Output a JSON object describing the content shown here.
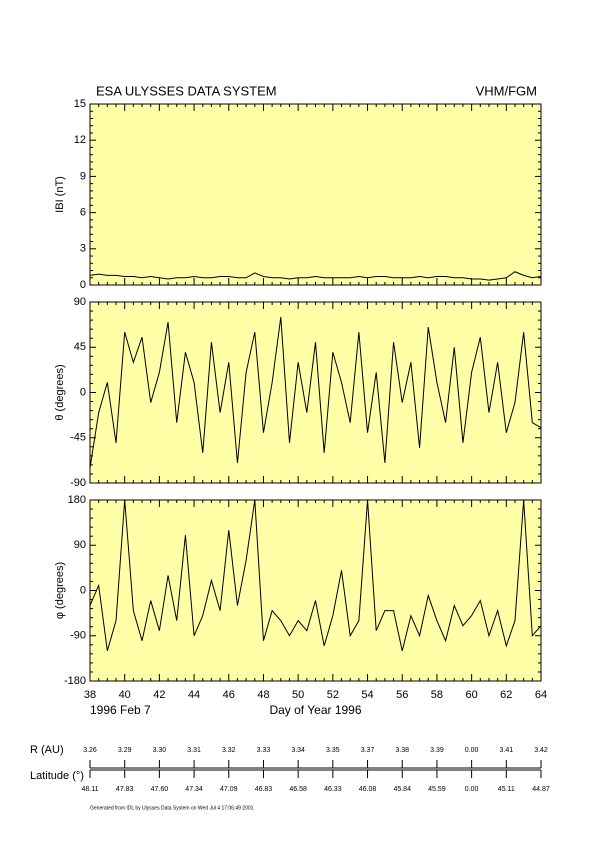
{
  "header": {
    "title": "ESA ULYSSES DATA SYSTEM",
    "instrument": "VHM/FGM"
  },
  "chart_data": [
    {
      "type": "line",
      "ylabel": "IBI (nT)",
      "color": "#000000",
      "xlim": [
        38,
        64
      ],
      "xticks": [
        38,
        40,
        42,
        44,
        46,
        48,
        50,
        52,
        54,
        56,
        58,
        60,
        62,
        64
      ],
      "ylim": [
        0,
        15
      ],
      "yticks": [
        0,
        3,
        6,
        9,
        12,
        15
      ],
      "x": [
        38,
        38.5,
        39,
        39.5,
        40,
        40.5,
        41,
        41.5,
        42,
        42.5,
        43,
        43.5,
        44,
        44.5,
        45,
        45.5,
        46,
        46.5,
        47,
        47.5,
        48,
        48.5,
        49,
        49.5,
        50,
        50.5,
        51,
        51.5,
        52,
        52.5,
        53,
        53.5,
        54,
        54.5,
        55,
        55.5,
        56,
        56.5,
        57,
        57.5,
        58,
        58.5,
        59,
        59.5,
        60,
        60.5,
        61,
        61.5,
        62,
        62.5,
        63,
        63.5,
        64
      ],
      "values": [
        0.8,
        0.9,
        0.8,
        0.8,
        0.7,
        0.7,
        0.6,
        0.7,
        0.6,
        0.5,
        0.6,
        0.6,
        0.7,
        0.6,
        0.6,
        0.7,
        0.7,
        0.6,
        0.6,
        1.0,
        0.7,
        0.6,
        0.6,
        0.5,
        0.6,
        0.6,
        0.7,
        0.6,
        0.6,
        0.6,
        0.6,
        0.7,
        0.6,
        0.7,
        0.7,
        0.6,
        0.6,
        0.6,
        0.7,
        0.6,
        0.7,
        0.7,
        0.6,
        0.6,
        0.5,
        0.5,
        0.4,
        0.5,
        0.6,
        1.1,
        0.8,
        0.6,
        0.7
      ]
    },
    {
      "type": "line",
      "ylabel": "θ (degrees)",
      "color": "#000000",
      "xlim": [
        38,
        64
      ],
      "xticks": [
        38,
        40,
        42,
        44,
        46,
        48,
        50,
        52,
        54,
        56,
        58,
        60,
        62,
        64
      ],
      "ylim": [
        -90,
        90
      ],
      "yticks": [
        -90,
        -45,
        0,
        45,
        90
      ],
      "x": [
        38,
        38.5,
        39,
        39.5,
        40,
        40.5,
        41,
        41.5,
        42,
        42.5,
        43,
        43.5,
        44,
        44.5,
        45,
        45.5,
        46,
        46.5,
        47,
        47.5,
        48,
        48.5,
        49,
        49.5,
        50,
        50.5,
        51,
        51.5,
        52,
        52.5,
        53,
        53.5,
        54,
        54.5,
        55,
        55.5,
        56,
        56.5,
        57,
        57.5,
        58,
        58.5,
        59,
        59.5,
        60,
        60.5,
        61,
        61.5,
        62,
        62.5,
        63,
        63.5,
        64
      ],
      "values": [
        -75,
        -20,
        10,
        -50,
        60,
        30,
        55,
        -10,
        20,
        70,
        -30,
        40,
        10,
        -60,
        50,
        -20,
        30,
        -70,
        20,
        60,
        -40,
        10,
        75,
        -50,
        30,
        -20,
        50,
        -60,
        40,
        10,
        -30,
        60,
        -40,
        20,
        -70,
        50,
        -10,
        30,
        -55,
        65,
        10,
        -30,
        45,
        -50,
        20,
        55,
        -20,
        30,
        -40,
        -10,
        60,
        -30,
        -35
      ]
    },
    {
      "type": "line",
      "ylabel": "φ (degrees)",
      "color": "#000000",
      "xlabel": "Day of Year 1996",
      "date_label": "1996 Feb  7",
      "xlim": [
        38,
        64
      ],
      "xticks": [
        38,
        40,
        42,
        44,
        46,
        48,
        50,
        52,
        54,
        56,
        58,
        60,
        62,
        64
      ],
      "ylim": [
        -180,
        180
      ],
      "yticks": [
        -180,
        -90,
        0,
        90,
        180
      ],
      "x": [
        38,
        38.5,
        39,
        39.5,
        40,
        40.5,
        41,
        41.5,
        42,
        42.5,
        43,
        43.5,
        44,
        44.5,
        45,
        45.5,
        46,
        46.5,
        47,
        47.5,
        48,
        48.5,
        49,
        49.5,
        50,
        50.5,
        51,
        51.5,
        52,
        52.5,
        53,
        53.5,
        54,
        54.5,
        55,
        55.5,
        56,
        56.5,
        57,
        57.5,
        58,
        58.5,
        59,
        59.5,
        60,
        60.5,
        61,
        61.5,
        62,
        62.5,
        63,
        63.5,
        64
      ],
      "values": [
        -30,
        10,
        -120,
        -60,
        180,
        -40,
        -100,
        -20,
        -80,
        30,
        -60,
        110,
        -90,
        -50,
        20,
        -40,
        120,
        -30,
        60,
        180,
        -100,
        -40,
        -60,
        -90,
        -60,
        -80,
        -20,
        -110,
        -50,
        40,
        -90,
        -60,
        180,
        -80,
        -40,
        -40,
        -120,
        -50,
        -90,
        -10,
        -60,
        -100,
        -30,
        -70,
        -50,
        -20,
        -90,
        -40,
        -110,
        -60,
        180,
        -90,
        -70
      ]
    }
  ],
  "ephemeris": {
    "rows": [
      {
        "label": "R (AU)",
        "values": [
          "3.26",
          "3.29",
          "3.30",
          "3.31",
          "3.32",
          "3.33",
          "3.34",
          "3.35",
          "3.37",
          "3.38",
          "3.39",
          "0.00",
          "3.41",
          "3.42"
        ]
      },
      {
        "label": "Latitude (°)",
        "values": [
          "48.11",
          "47.83",
          "47.60",
          "47.34",
          "47.09",
          "46.83",
          "46.58",
          "46.33",
          "46.08",
          "45.84",
          "45.59",
          "0.00",
          "45.11",
          "44.87"
        ]
      }
    ]
  },
  "footer": "Generated from IDL by Ulysses Data System on Wed Jul  4 17:06:49 2001"
}
